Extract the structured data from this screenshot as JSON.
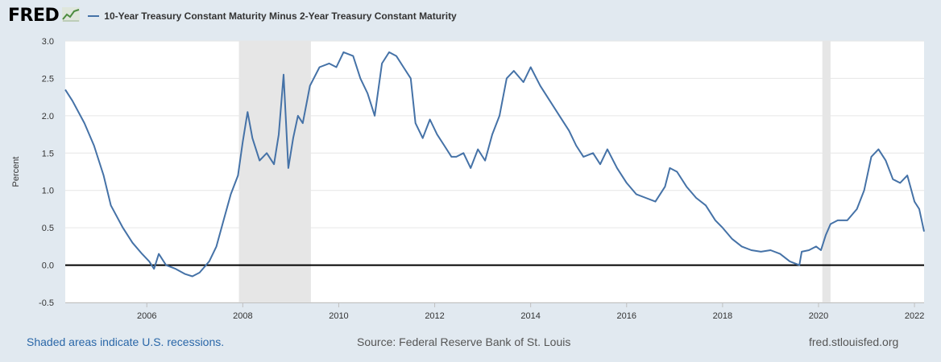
{
  "header": {
    "brand": "FRED",
    "legend_label": "10-Year Treasury Constant Maturity Minus 2-Year Treasury Constant Maturity"
  },
  "footer": {
    "recession_note": "Shaded areas indicate U.S. recessions.",
    "source": "Source: Federal Reserve Bank of St. Louis",
    "site": "fred.stlouisfed.org"
  },
  "colors": {
    "series": "#4572a7",
    "background": "#e1e9f0",
    "plot_background": "#ffffff",
    "recession_shade": "#e6e6e6",
    "gridline": "#e6e6e6",
    "zero_line": "#000000"
  },
  "icons": {
    "brand_logo": "chart-line-icon",
    "legend_swatch": "line-swatch-icon"
  },
  "chart_data": {
    "type": "line",
    "title": "",
    "xlabel": "",
    "ylabel": "Percent",
    "xlim": [
      2004.3,
      2022.2
    ],
    "ylim": [
      -0.5,
      3.0
    ],
    "yticks": [
      "-0.5",
      "0.0",
      "0.5",
      "1.0",
      "1.5",
      "2.0",
      "2.5",
      "3.0"
    ],
    "ytick_values": [
      -0.5,
      0.0,
      0.5,
      1.0,
      1.5,
      2.0,
      2.5,
      3.0
    ],
    "xticks": [
      "2006",
      "2008",
      "2010",
      "2012",
      "2014",
      "2016",
      "2018",
      "2020",
      "2022"
    ],
    "xtick_values": [
      2006,
      2008,
      2010,
      2012,
      2014,
      2016,
      2018,
      2020,
      2022
    ],
    "grid": true,
    "zero_line": true,
    "recessions": [
      {
        "start": 2007.92,
        "end": 2009.42
      },
      {
        "start": 2020.08,
        "end": 2020.25
      }
    ],
    "series": [
      {
        "name": "10-Year Treasury Constant Maturity Minus 2-Year Treasury Constant Maturity",
        "x": [
          2004.3,
          2004.45,
          2004.7,
          2004.9,
          2005.1,
          2005.25,
          2005.5,
          2005.7,
          2005.9,
          2006.05,
          2006.15,
          2006.25,
          2006.4,
          2006.6,
          2006.8,
          2006.95,
          2007.1,
          2007.3,
          2007.45,
          2007.6,
          2007.75,
          2007.9,
          2008.0,
          2008.1,
          2008.2,
          2008.35,
          2008.5,
          2008.65,
          2008.75,
          2008.85,
          2008.95,
          2009.05,
          2009.15,
          2009.25,
          2009.4,
          2009.6,
          2009.8,
          2009.95,
          2010.1,
          2010.3,
          2010.45,
          2010.6,
          2010.75,
          2010.9,
          2011.05,
          2011.2,
          2011.35,
          2011.5,
          2011.6,
          2011.75,
          2011.9,
          2012.05,
          2012.2,
          2012.35,
          2012.45,
          2012.6,
          2012.75,
          2012.9,
          2013.05,
          2013.2,
          2013.35,
          2013.5,
          2013.65,
          2013.85,
          2014.0,
          2014.2,
          2014.4,
          2014.6,
          2014.8,
          2014.95,
          2015.1,
          2015.3,
          2015.45,
          2015.6,
          2015.8,
          2016.0,
          2016.2,
          2016.4,
          2016.6,
          2016.8,
          2016.9,
          2017.05,
          2017.25,
          2017.45,
          2017.65,
          2017.85,
          2018.0,
          2018.2,
          2018.4,
          2018.6,
          2018.8,
          2019.0,
          2019.2,
          2019.4,
          2019.6,
          2019.65,
          2019.8,
          2019.95,
          2020.05,
          2020.15,
          2020.25,
          2020.4,
          2020.6,
          2020.8,
          2020.95,
          2021.1,
          2021.25,
          2021.4,
          2021.55,
          2021.7,
          2021.85,
          2022.0,
          2022.1,
          2022.2
        ],
        "values": [
          2.35,
          2.2,
          1.9,
          1.6,
          1.2,
          0.8,
          0.5,
          0.3,
          0.15,
          0.05,
          -0.05,
          0.15,
          0.0,
          -0.05,
          -0.12,
          -0.15,
          -0.1,
          0.05,
          0.25,
          0.6,
          0.95,
          1.2,
          1.65,
          2.05,
          1.7,
          1.4,
          1.5,
          1.35,
          1.75,
          2.55,
          1.3,
          1.7,
          2.0,
          1.9,
          2.4,
          2.65,
          2.7,
          2.65,
          2.85,
          2.8,
          2.5,
          2.3,
          2.0,
          2.7,
          2.85,
          2.8,
          2.65,
          2.5,
          1.9,
          1.7,
          1.95,
          1.75,
          1.6,
          1.45,
          1.45,
          1.5,
          1.3,
          1.55,
          1.4,
          1.75,
          2.0,
          2.5,
          2.6,
          2.45,
          2.65,
          2.4,
          2.2,
          2.0,
          1.8,
          1.6,
          1.45,
          1.5,
          1.35,
          1.55,
          1.3,
          1.1,
          0.95,
          0.9,
          0.85,
          1.05,
          1.3,
          1.25,
          1.05,
          0.9,
          0.8,
          0.6,
          0.5,
          0.35,
          0.25,
          0.2,
          0.18,
          0.2,
          0.15,
          0.05,
          0.0,
          0.18,
          0.2,
          0.25,
          0.2,
          0.4,
          0.55,
          0.6,
          0.6,
          0.75,
          1.0,
          1.45,
          1.55,
          1.4,
          1.15,
          1.1,
          1.2,
          0.85,
          0.75,
          0.45
        ]
      }
    ]
  }
}
